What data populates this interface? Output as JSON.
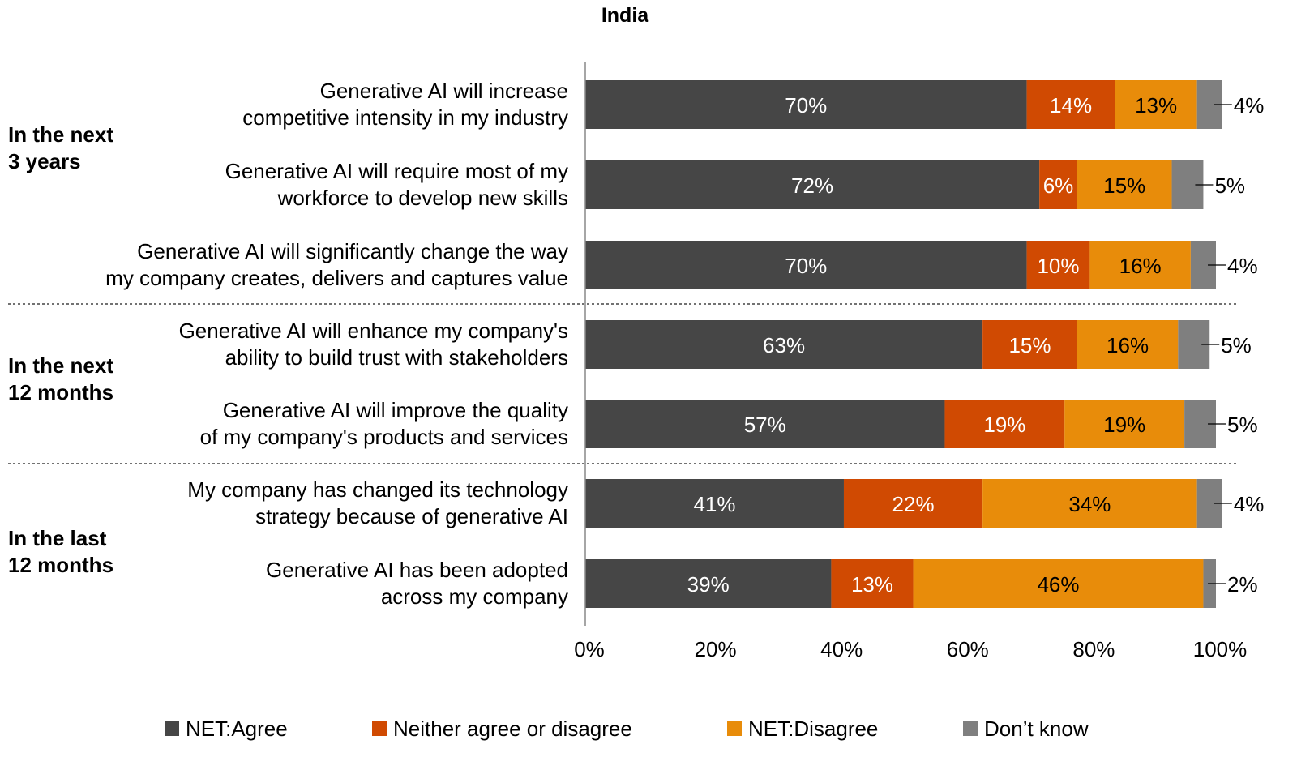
{
  "chart_data": {
    "type": "bar",
    "orientation": "horizontal",
    "stacked": true,
    "title": "India",
    "xlim": [
      0,
      100
    ],
    "x_ticks": [
      "0%",
      "20%",
      "40%",
      "60%",
      "80%",
      "100%"
    ],
    "grid": false,
    "legend_placement": "bottom",
    "groups": [
      {
        "label": "In the next 3 years",
        "rows": [
          0,
          1,
          2
        ]
      },
      {
        "label": "In the next 12 months",
        "rows": [
          3,
          4
        ]
      },
      {
        "label": "In the last 12 months",
        "rows": [
          5,
          6
        ]
      }
    ],
    "categories": [
      [
        "Generative AI will increase",
        "competitive intensity in my industry"
      ],
      [
        "Generative AI will require most of my",
        "workforce to develop new skills"
      ],
      [
        "Generative AI will significantly change the way",
        "my company creates, delivers and captures value"
      ],
      [
        "Generative AI will enhance my company's",
        "ability to build trust with stakeholders"
      ],
      [
        "Generative AI will improve the quality",
        "of my company's products and services"
      ],
      [
        "My company has changed its technology",
        "strategy because of generative AI"
      ],
      [
        "Generative AI has been adopted",
        "across my company"
      ]
    ],
    "series": [
      {
        "name": "NET:Agree",
        "color": "#464646",
        "values": [
          70,
          72,
          70,
          63,
          57,
          41,
          39
        ]
      },
      {
        "name": "Neither agree or disagree",
        "color": "#d04a02",
        "values": [
          14,
          6,
          10,
          15,
          19,
          22,
          13
        ]
      },
      {
        "name": "NET:Disagree",
        "color": "#e88c0a",
        "values": [
          13,
          15,
          16,
          16,
          19,
          34,
          46
        ]
      },
      {
        "name": "Don’t know",
        "color": "#7f7f7f",
        "values": [
          4,
          5,
          4,
          5,
          5,
          4,
          2
        ]
      }
    ]
  }
}
